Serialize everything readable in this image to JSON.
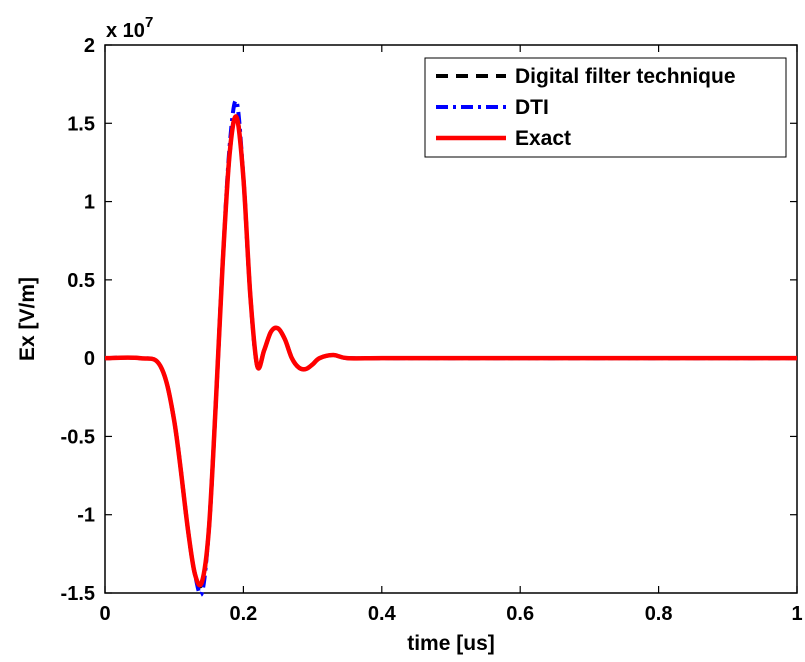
{
  "chart_data": {
    "type": "line",
    "title": "",
    "xlabel": "time [us]",
    "ylabel": "Ex [V/m]",
    "y_exponent_label": {
      "base": "x 10",
      "exponent": "7"
    },
    "xlim": [
      0,
      1
    ],
    "ylim": [
      -1.5,
      2
    ],
    "x_ticks": [
      0,
      0.2,
      0.4,
      0.6,
      0.8,
      1
    ],
    "x_tick_labels": [
      "0",
      "0.2",
      "0.4",
      "0.6",
      "0.8",
      "1"
    ],
    "y_ticks": [
      -1.5,
      -1,
      -0.5,
      0,
      0.5,
      1,
      1.5,
      2
    ],
    "y_tick_labels": [
      "-1.5",
      "-1",
      "-0.5",
      "0",
      "0.5",
      "1",
      "1.5",
      "2"
    ],
    "grid": false,
    "legend_position": "top-right",
    "series": [
      {
        "name": "Digital filter technique",
        "color": "#000000",
        "style": "dashed",
        "x": [
          0,
          0.05,
          0.08,
          0.1,
          0.12,
          0.13,
          0.14,
          0.15,
          0.16,
          0.17,
          0.18,
          0.19,
          0.2,
          0.21,
          0.22,
          0.23,
          0.24,
          0.25,
          0.26,
          0.27,
          0.28,
          0.29,
          0.3,
          0.31,
          0.33,
          0.35,
          0.4,
          0.5,
          0.6,
          0.8,
          1.0
        ],
        "y": [
          0,
          0,
          -0.05,
          -0.4,
          -1.1,
          -1.38,
          -1.44,
          -1.1,
          -0.3,
          0.6,
          1.3,
          1.55,
          1.15,
          0.4,
          -0.05,
          0.05,
          0.17,
          0.19,
          0.12,
          0.0,
          -0.06,
          -0.07,
          -0.04,
          0.0,
          0.02,
          0.0,
          0,
          0,
          0,
          0,
          0
        ]
      },
      {
        "name": "DTI",
        "color": "#0000ff",
        "style": "dashdot",
        "x": [
          0,
          0.05,
          0.08,
          0.1,
          0.12,
          0.13,
          0.14,
          0.15,
          0.16,
          0.17,
          0.18,
          0.19,
          0.2,
          0.21,
          0.22,
          0.23,
          0.24,
          0.25,
          0.26,
          0.27,
          0.28,
          0.29,
          0.3,
          0.31,
          0.33,
          0.35,
          0.4,
          0.5,
          0.6,
          0.8,
          1.0
        ],
        "y": [
          0,
          0,
          -0.05,
          -0.4,
          -1.1,
          -1.38,
          -1.5,
          -1.1,
          -0.3,
          0.6,
          1.35,
          1.64,
          1.15,
          0.4,
          -0.05,
          0.05,
          0.17,
          0.19,
          0.12,
          0.0,
          -0.06,
          -0.07,
          -0.04,
          0.0,
          0.02,
          0.0,
          0,
          0,
          0,
          0,
          0
        ]
      },
      {
        "name": "Exact",
        "color": "#ff0000",
        "style": "solid",
        "x": [
          0,
          0.05,
          0.08,
          0.1,
          0.12,
          0.13,
          0.14,
          0.15,
          0.16,
          0.17,
          0.18,
          0.19,
          0.2,
          0.21,
          0.22,
          0.23,
          0.24,
          0.25,
          0.26,
          0.27,
          0.28,
          0.29,
          0.3,
          0.31,
          0.33,
          0.35,
          0.4,
          0.5,
          0.6,
          0.8,
          1.0
        ],
        "y": [
          0,
          0,
          -0.05,
          -0.4,
          -1.1,
          -1.38,
          -1.43,
          -1.1,
          -0.3,
          0.6,
          1.3,
          1.54,
          1.15,
          0.4,
          -0.05,
          0.05,
          0.17,
          0.19,
          0.12,
          0.0,
          -0.06,
          -0.07,
          -0.04,
          0.0,
          0.02,
          0.0,
          0,
          0,
          0,
          0,
          0
        ]
      }
    ]
  }
}
